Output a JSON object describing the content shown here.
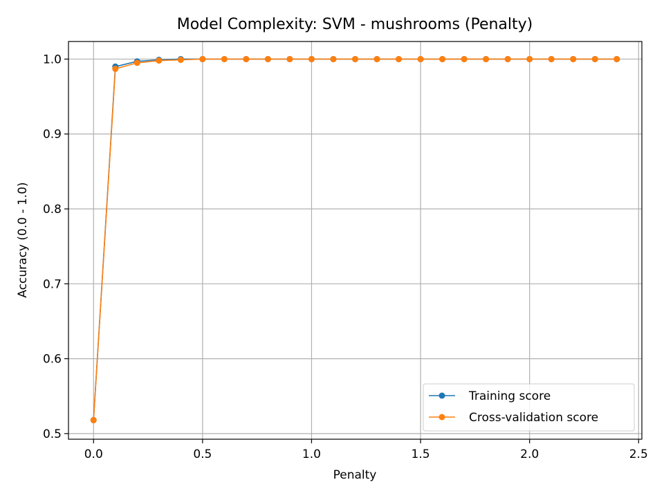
{
  "chart_data": {
    "type": "line",
    "title": "Model Complexity: SVM - mushrooms (Penalty)",
    "xlabel": "Penalty",
    "ylabel": "Accuracy (0.0 - 1.0)",
    "xlim": [
      -0.115,
      2.515
    ],
    "ylim": [
      0.4925,
      1.0235
    ],
    "xticks": [
      0.0,
      0.5,
      1.0,
      1.5,
      2.0,
      2.5
    ],
    "xtick_labels": [
      "0.0",
      "0.5",
      "1.0",
      "1.5",
      "2.0",
      "2.5"
    ],
    "yticks": [
      0.5,
      0.6,
      0.7,
      0.8,
      0.9,
      1.0
    ],
    "ytick_labels": [
      "0.5",
      "0.6",
      "0.7",
      "0.8",
      "0.9",
      "1.0"
    ],
    "grid": true,
    "legend_position": "lower-right",
    "x": [
      0.0,
      0.1,
      0.2,
      0.3,
      0.4,
      0.5,
      0.6,
      0.7,
      0.8,
      0.9,
      1.0,
      1.1,
      1.2,
      1.3,
      1.4,
      1.5,
      1.6,
      1.7,
      1.8,
      1.9,
      2.0,
      2.1,
      2.2,
      2.3,
      2.4
    ],
    "series": [
      {
        "name": "Training score",
        "color": "#1f77b4",
        "values": [
          0.518,
          0.99,
          0.997,
          0.999,
          1.0,
          1.0,
          1.0,
          1.0,
          1.0,
          1.0,
          1.0,
          1.0,
          1.0,
          1.0,
          1.0,
          1.0,
          1.0,
          1.0,
          1.0,
          1.0,
          1.0,
          1.0,
          1.0,
          1.0,
          1.0
        ]
      },
      {
        "name": "Cross-validation score",
        "color": "#ff7f0e",
        "values": [
          0.518,
          0.987,
          0.995,
          0.998,
          0.999,
          1.0,
          1.0,
          1.0,
          1.0,
          1.0,
          1.0,
          1.0,
          1.0,
          1.0,
          1.0,
          1.0,
          1.0,
          1.0,
          1.0,
          1.0,
          1.0,
          1.0,
          1.0,
          1.0,
          1.0
        ]
      }
    ]
  }
}
